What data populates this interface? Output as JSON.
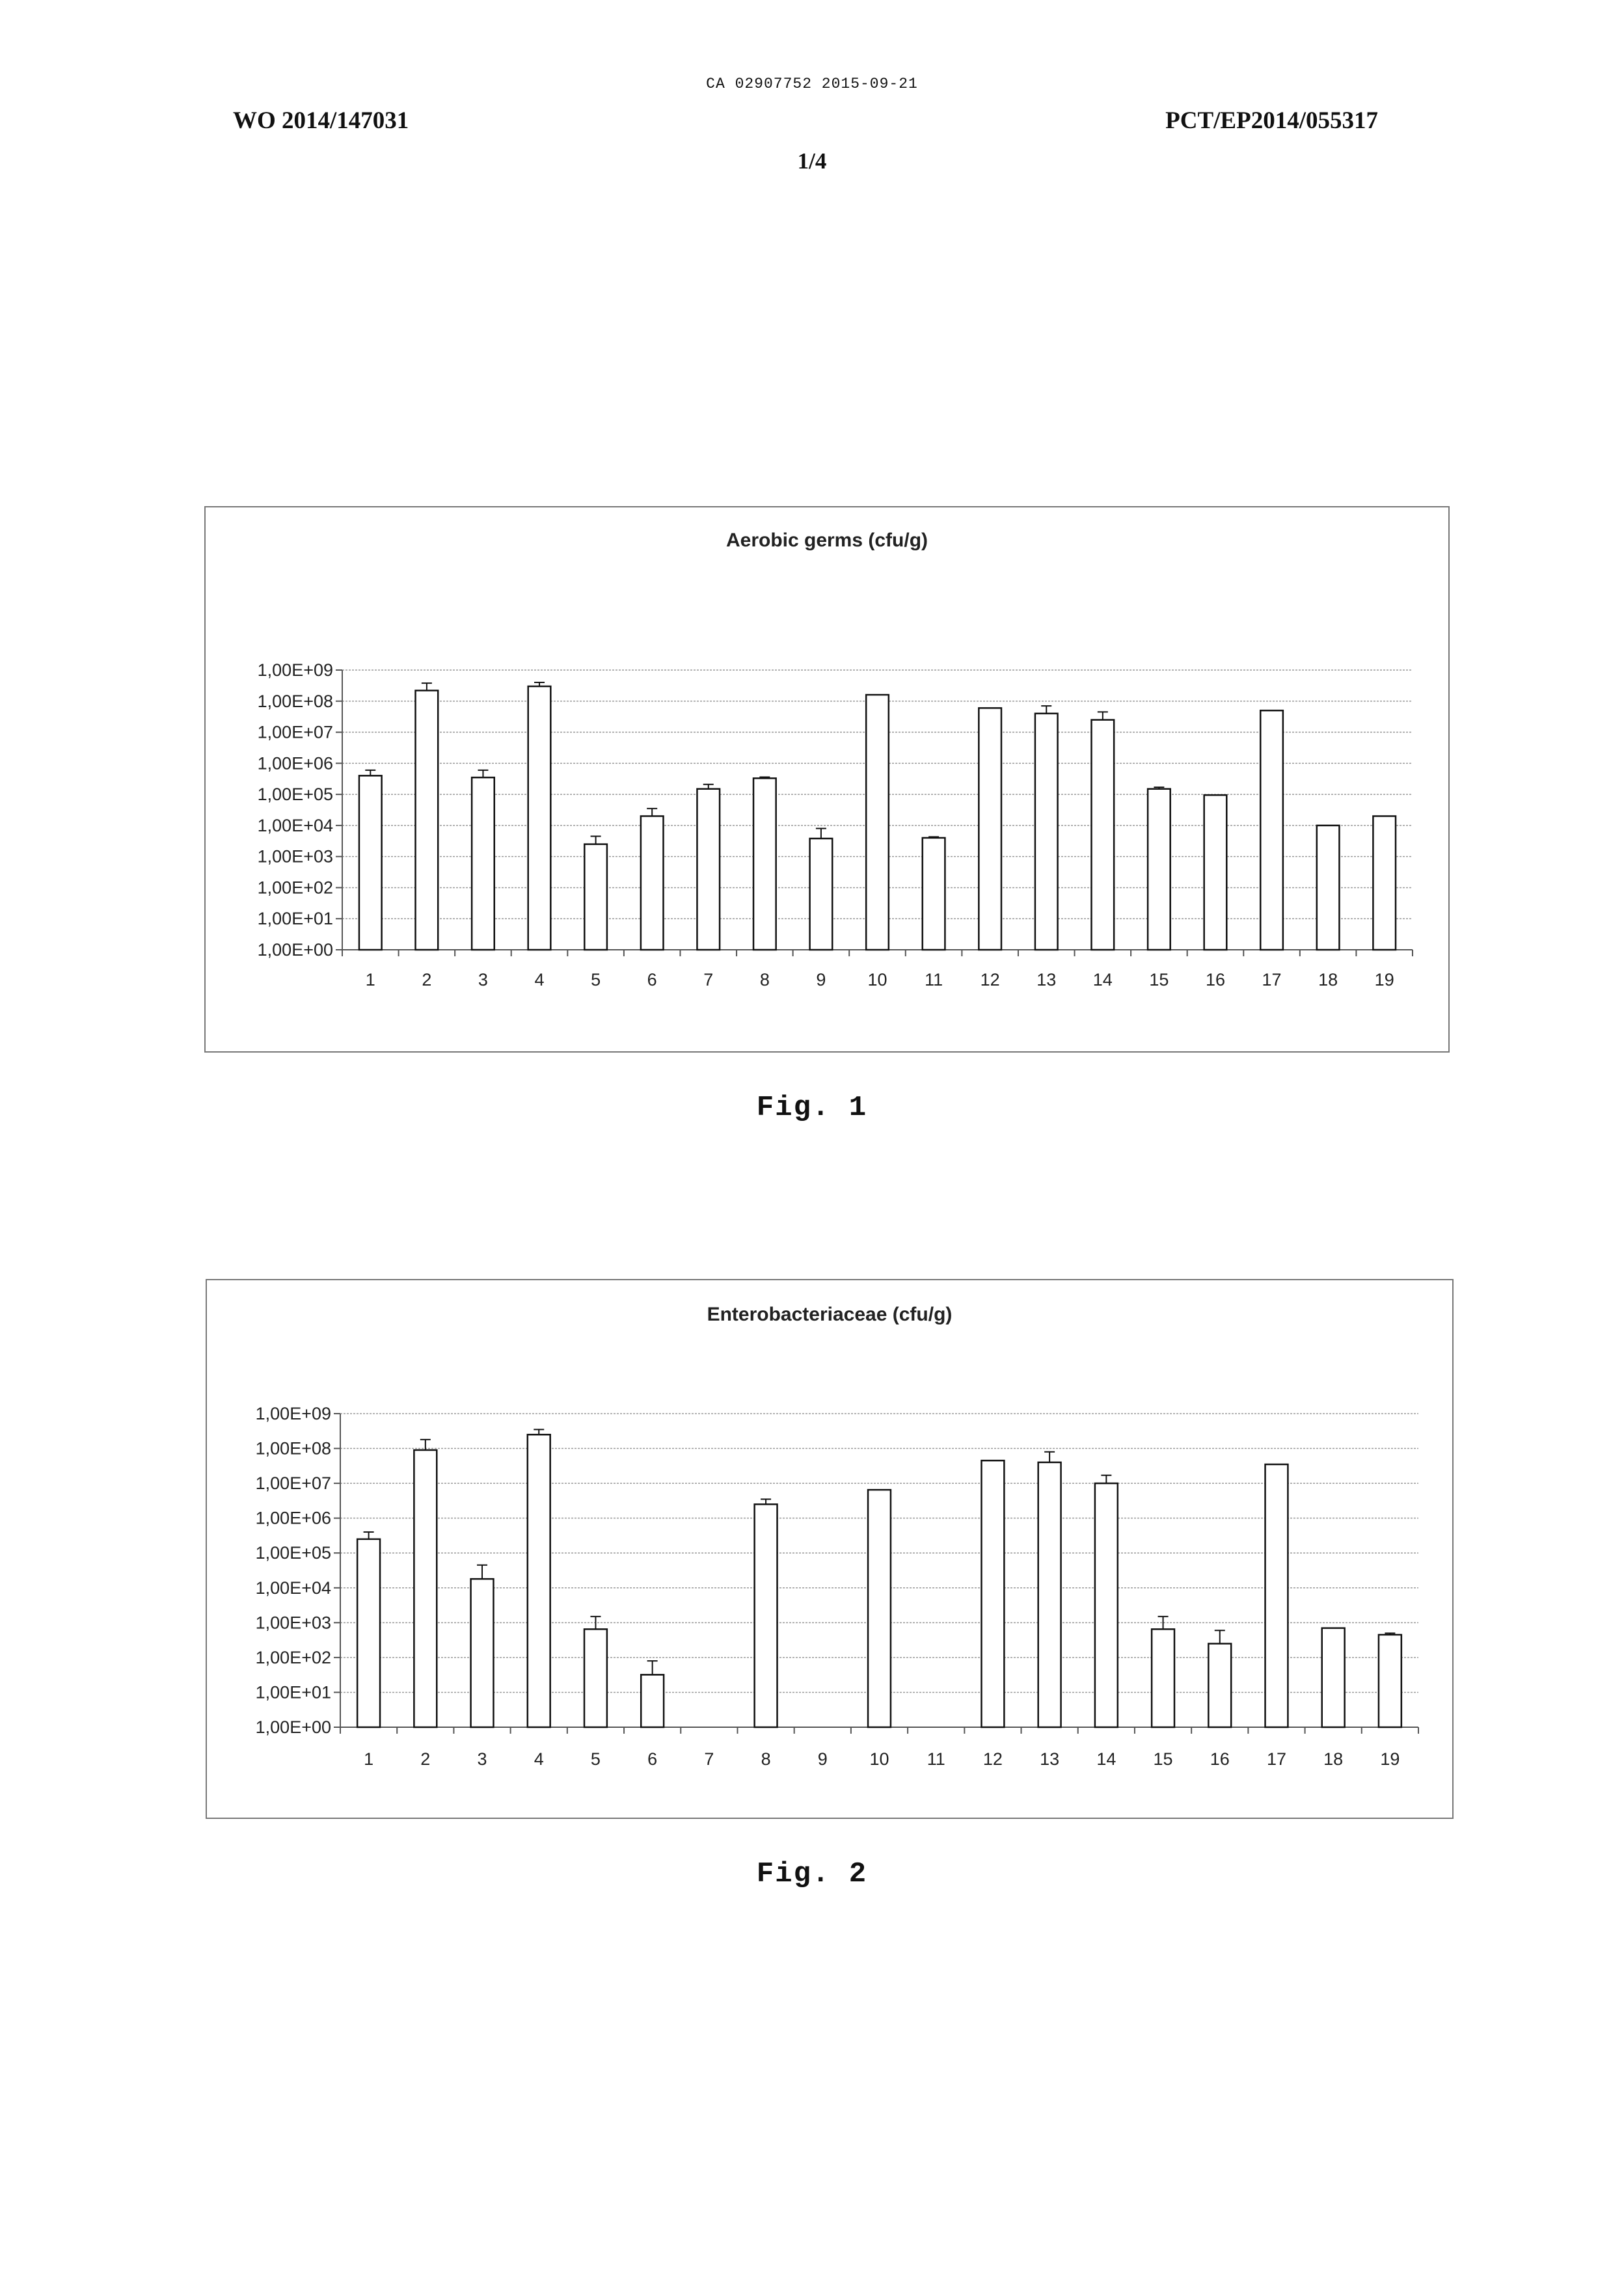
{
  "header": {
    "ca_line": "CA 02907752 2015-09-21",
    "left": "WO 2014/147031",
    "right": "PCT/EP2014/055317",
    "sheet": "1/4"
  },
  "figures": [
    {
      "caption": "Fig. 1"
    },
    {
      "caption": "Fig. 2"
    }
  ],
  "chart_data": [
    {
      "type": "bar",
      "title": "Aerobic germs (cfu/g)",
      "y_scale": "log10",
      "ylim": [
        1,
        1000000000
      ],
      "y_tick_labels": [
        "1,00E+00",
        "1,00E+01",
        "1,00E+02",
        "1,00E+03",
        "1,00E+04",
        "1,00E+05",
        "1,00E+06",
        "1,00E+07",
        "1,00E+08",
        "1,00E+09"
      ],
      "categories": [
        "1",
        "2",
        "3",
        "4",
        "5",
        "6",
        "7",
        "8",
        "9",
        "10",
        "11",
        "12",
        "13",
        "14",
        "15",
        "16",
        "17",
        "18",
        "19"
      ],
      "values": [
        400000,
        220000000,
        350000,
        300000000,
        2500,
        20000,
        150000,
        330000,
        3800,
        160000000,
        4000,
        60000000,
        40000000,
        25000000,
        150000,
        95000,
        50000000,
        10000,
        20000
      ],
      "error_upper": [
        600000,
        380000000,
        600000,
        400000000,
        4500,
        35000,
        210000,
        360000,
        8000,
        null,
        4300,
        null,
        70000000,
        45000000,
        170000,
        null,
        null,
        null,
        null
      ],
      "grid": true,
      "legend": "none"
    },
    {
      "type": "bar",
      "title": "Enterobacteriaceae (cfu/g)",
      "y_scale": "log10",
      "ylim": [
        1,
        1000000000
      ],
      "y_tick_labels": [
        "1,00E+00",
        "1,00E+01",
        "1,00E+02",
        "1,00E+03",
        "1,00E+04",
        "1,00E+05",
        "1,00E+06",
        "1,00E+07",
        "1,00E+08",
        "1,00E+09"
      ],
      "categories": [
        "1",
        "2",
        "3",
        "4",
        "5",
        "6",
        "7",
        "8",
        "9",
        "10",
        "11",
        "12",
        "13",
        "14",
        "15",
        "16",
        "17",
        "18",
        "19"
      ],
      "values": [
        250000,
        90000000,
        18000,
        250000000,
        650,
        32,
        null,
        2500000,
        null,
        6500000,
        null,
        45000000,
        40000000,
        10000000,
        650,
        250,
        35000000,
        700,
        450
      ],
      "error_upper": [
        400000,
        180000000,
        45000,
        350000000,
        1500,
        80,
        null,
        3500000,
        null,
        null,
        null,
        null,
        80000000,
        17000000,
        1500,
        600,
        null,
        null,
        500
      ],
      "grid": true,
      "legend": "none"
    }
  ]
}
